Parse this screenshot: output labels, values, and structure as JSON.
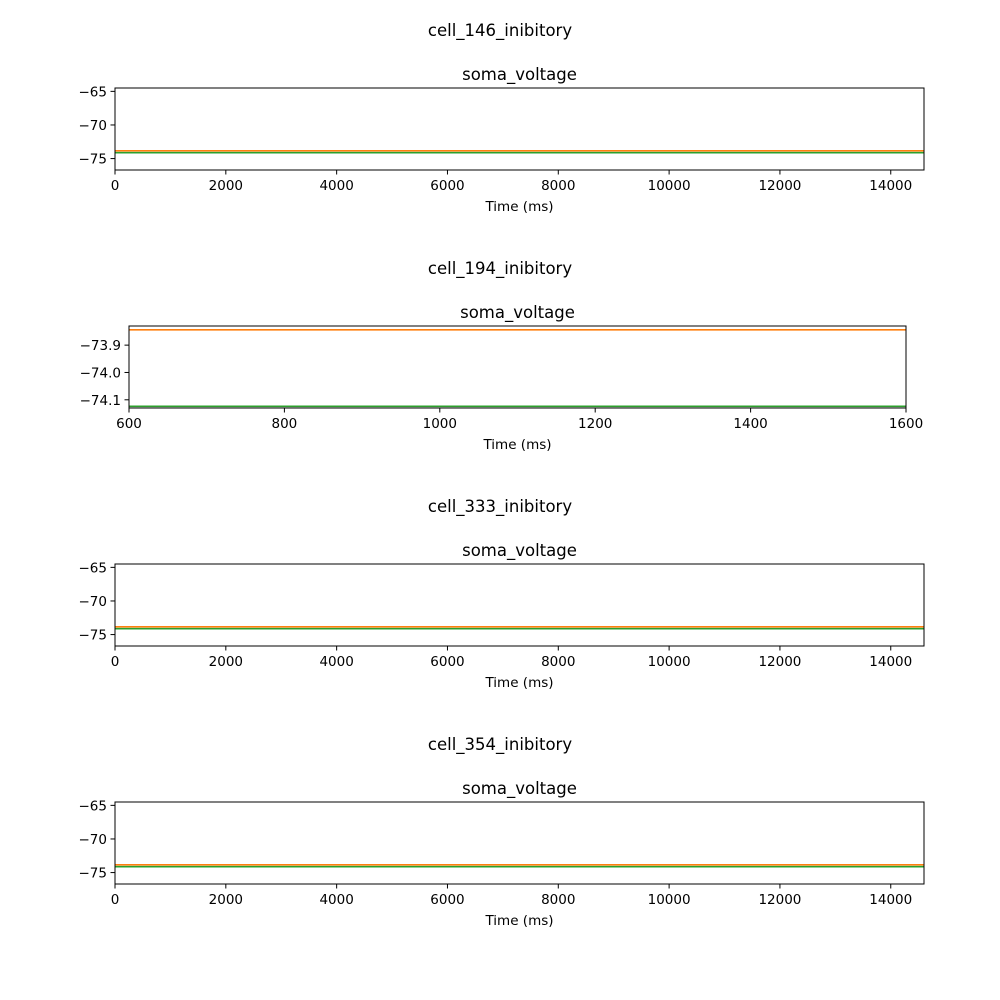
{
  "chart_data": [
    {
      "type": "line",
      "suptitle": "cell_146_inibitory",
      "title": "soma_voltage",
      "xlabel": "Time (ms)",
      "ylabel": "",
      "xlim": [
        0,
        14600
      ],
      "ylim": [
        -76.7,
        -64.5
      ],
      "xticks": [
        0,
        2000,
        4000,
        6000,
        8000,
        10000,
        12000,
        14000
      ],
      "yticks": [
        -65,
        -70,
        -75
      ],
      "ytick_labels": [
        "−65",
        "−70",
        "−75"
      ],
      "grid": false,
      "series": [
        {
          "color": "#ff7f0e",
          "x": [
            0,
            14600
          ],
          "y": [
            -73.84,
            -73.84
          ]
        },
        {
          "color": "#2ca02c",
          "x": [
            0,
            14600
          ],
          "y": [
            -74.13,
            -74.13
          ]
        }
      ]
    },
    {
      "type": "line",
      "suptitle": "cell_194_inibitory",
      "title": "soma_voltage",
      "xlabel": "Time (ms)",
      "ylabel": "",
      "xlim": [
        600,
        1600
      ],
      "ylim": [
        -74.13,
        -73.83
      ],
      "xticks": [
        600,
        800,
        1000,
        1200,
        1400,
        1600
      ],
      "yticks": [
        -73.9,
        -74.0,
        -74.1
      ],
      "ytick_labels": [
        "−73.9",
        "−74.0",
        "−74.1"
      ],
      "grid": false,
      "series": [
        {
          "color": "#ff7f0e",
          "x": [
            600,
            1600
          ],
          "y": [
            -73.844,
            -73.844
          ]
        },
        {
          "color": "#2ca02c",
          "x": [
            600,
            1600
          ],
          "y": [
            -74.124,
            -74.124
          ]
        }
      ]
    },
    {
      "type": "line",
      "suptitle": "cell_333_inibitory",
      "title": "soma_voltage",
      "xlabel": "Time (ms)",
      "ylabel": "",
      "xlim": [
        0,
        14600
      ],
      "ylim": [
        -76.7,
        -64.5
      ],
      "xticks": [
        0,
        2000,
        4000,
        6000,
        8000,
        10000,
        12000,
        14000
      ],
      "yticks": [
        -65,
        -70,
        -75
      ],
      "ytick_labels": [
        "−65",
        "−70",
        "−75"
      ],
      "grid": false,
      "series": [
        {
          "color": "#ff7f0e",
          "x": [
            0,
            14600
          ],
          "y": [
            -73.84,
            -73.84
          ]
        },
        {
          "color": "#2ca02c",
          "x": [
            0,
            14600
          ],
          "y": [
            -74.13,
            -74.13
          ]
        }
      ]
    },
    {
      "type": "line",
      "suptitle": "cell_354_inibitory",
      "title": "soma_voltage",
      "xlabel": "Time (ms)",
      "ylabel": "",
      "xlim": [
        0,
        14600
      ],
      "ylim": [
        -76.7,
        -64.5
      ],
      "xticks": [
        0,
        2000,
        4000,
        6000,
        8000,
        10000,
        12000,
        14000
      ],
      "yticks": [
        -65,
        -70,
        -75
      ],
      "ytick_labels": [
        "−65",
        "−70",
        "−75"
      ],
      "grid": false,
      "series": [
        {
          "color": "#ff7f0e",
          "x": [
            0,
            14600
          ],
          "y": [
            -73.84,
            -73.84
          ]
        },
        {
          "color": "#2ca02c",
          "x": [
            0,
            14600
          ],
          "y": [
            -74.13,
            -74.13
          ]
        }
      ]
    }
  ]
}
